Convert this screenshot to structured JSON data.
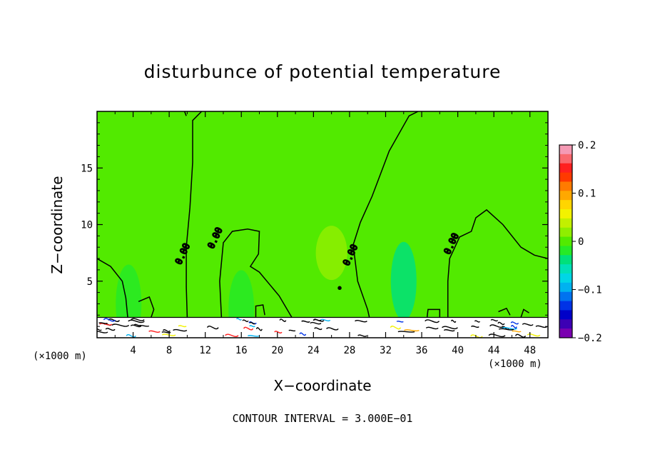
{
  "chart_data": {
    "type": "heatmap",
    "title": "disturbunce of potential temperature",
    "xlabel": "X−coordinate",
    "ylabel": "Z−coordinate",
    "x_unit_left": "(×1000 m)",
    "x_unit_right": "(×1000 m)",
    "footer": "CONTOUR INTERVAL = 3.000E−01",
    "xlim": [
      0,
      50
    ],
    "ylim": [
      0,
      20
    ],
    "x_ticks": [
      4,
      8,
      12,
      16,
      20,
      24,
      28,
      32,
      36,
      40,
      44,
      48
    ],
    "x_tick_labels": [
      "4",
      "8",
      "12",
      "16",
      "20",
      "24",
      "28",
      "32",
      "36",
      "40",
      "44",
      "48"
    ],
    "y_ticks": [
      5,
      10,
      15
    ],
    "y_tick_labels": [
      "5",
      "10",
      "15"
    ],
    "colorbar": {
      "min": -0.2,
      "max": 0.2,
      "ticks": [
        0.2,
        0.1,
        0,
        -0.1,
        -0.2
      ],
      "tick_labels": [
        "0.2",
        "0.1",
        "0",
        "−0.1",
        "−0.2"
      ],
      "colors": [
        "#f59ab4",
        "#f9686e",
        "#ff2020",
        "#ff3a00",
        "#ff7b00",
        "#ffa800",
        "#ffd500",
        "#f2f200",
        "#c2f000",
        "#8fee00",
        "#52ea00",
        "#26ea26",
        "#00e07a",
        "#00e0b8",
        "#00d6e6",
        "#00b2f0",
        "#0073f0",
        "#0033e6",
        "#0000c8",
        "#3c00b4",
        "#7a00b0"
      ]
    },
    "background_value": 0,
    "contour_level": 0,
    "contour_labels": [
      "0.00",
      "0.00",
      "0.00",
      "0.00"
    ],
    "features": [
      {
        "kind": "warm_anomaly",
        "x": 26,
        "z": 7.5,
        "value": 0.02
      },
      {
        "kind": "cool_anomaly",
        "x": 34,
        "z": 5,
        "value": -0.03
      },
      {
        "kind": "cool_anomaly",
        "x": 3.5,
        "z": 3,
        "value": -0.02
      },
      {
        "kind": "cool_anomaly",
        "x": 16,
        "z": 2.5,
        "value": -0.02
      }
    ],
    "grid": false,
    "legend": "right"
  }
}
